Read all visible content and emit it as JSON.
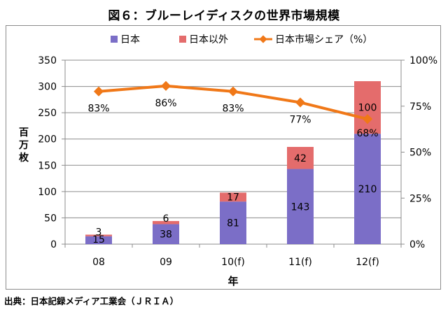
{
  "title": "図６：ブルーレイディスクの世界市場規模",
  "source": "出典：日本記録メディア工業会（ＪＲＩＡ）",
  "colors": {
    "japan": "#7b6ec7",
    "overseas": "#e46c6c",
    "share": "#f07818",
    "grid": "#8c8c8c"
  },
  "chart_data": {
    "type": "bar",
    "stacked": true,
    "categories": [
      "08",
      "09",
      "10(f)",
      "11(f)",
      "12(f)"
    ],
    "xlabel": "年",
    "ylabel": "百万枚",
    "ylim": [
      0,
      350
    ],
    "yticks": [
      0,
      50,
      100,
      150,
      200,
      250,
      300,
      350
    ],
    "y2lim": [
      0,
      100
    ],
    "y2ticks": [
      "0%",
      "25%",
      "50%",
      "75%",
      "100%"
    ],
    "y2tickvalues": [
      0,
      25,
      50,
      75,
      100
    ],
    "grid": true,
    "legend": "top",
    "series": [
      {
        "name": "日本",
        "type": "bar",
        "values": [
          15,
          38,
          81,
          143,
          210
        ],
        "labels": [
          "15",
          "38",
          "81",
          "143",
          "210"
        ]
      },
      {
        "name": "日本以外",
        "type": "bar",
        "values": [
          3,
          6,
          17,
          42,
          100
        ],
        "labels": [
          "3",
          "6",
          "17",
          "42",
          "100"
        ]
      },
      {
        "name": "日本市場シェア（%）",
        "type": "line",
        "axis": "right",
        "values": [
          83,
          86,
          83,
          77,
          68
        ],
        "labels": [
          "83%",
          "86%",
          "83%",
          "77%",
          "68%"
        ]
      }
    ]
  }
}
